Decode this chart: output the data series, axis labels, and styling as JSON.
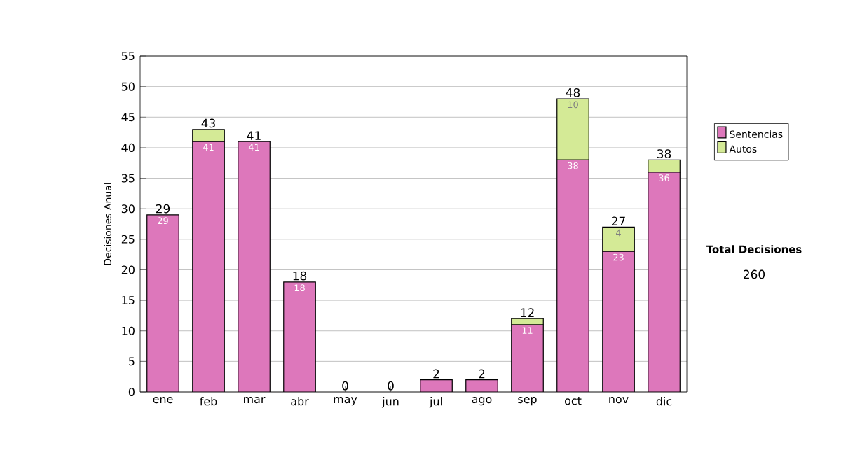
{
  "chart_data": {
    "type": "bar",
    "stacked": true,
    "ylabel": "Decisiones Anual",
    "categories": [
      "ene",
      "feb",
      "mar",
      "abr",
      "may",
      "jun",
      "jul",
      "ago",
      "sep",
      "oct",
      "nov",
      "dic"
    ],
    "series": [
      {
        "name": "Sentencias",
        "color": "#dd77bb",
        "values": [
          29,
          41,
          41,
          18,
          0,
          0,
          2,
          2,
          11,
          38,
          23,
          36
        ],
        "value_labels": [
          "29",
          "41",
          "41",
          "18",
          null,
          null,
          null,
          null,
          "11",
          "38",
          "23",
          "36"
        ]
      },
      {
        "name": "Autos",
        "color": "#d4ea96",
        "values": [
          null,
          2,
          null,
          null,
          null,
          null,
          null,
          null,
          1,
          10,
          4,
          2
        ],
        "value_labels": [
          null,
          null,
          null,
          null,
          null,
          null,
          null,
          null,
          null,
          "10",
          "4",
          null
        ]
      }
    ],
    "totals": [
      "29",
      "43",
      "41",
      "18",
      "0",
      "0",
      "2",
      "2",
      "12",
      "48",
      "27",
      "38"
    ],
    "ylim": [
      0,
      55
    ],
    "yticks": [
      0,
      5,
      10,
      15,
      20,
      25,
      30,
      35,
      40,
      45,
      50,
      55
    ],
    "grid": "y",
    "legend": "right",
    "annotations": [
      "Total Decisiones",
      "260"
    ]
  }
}
